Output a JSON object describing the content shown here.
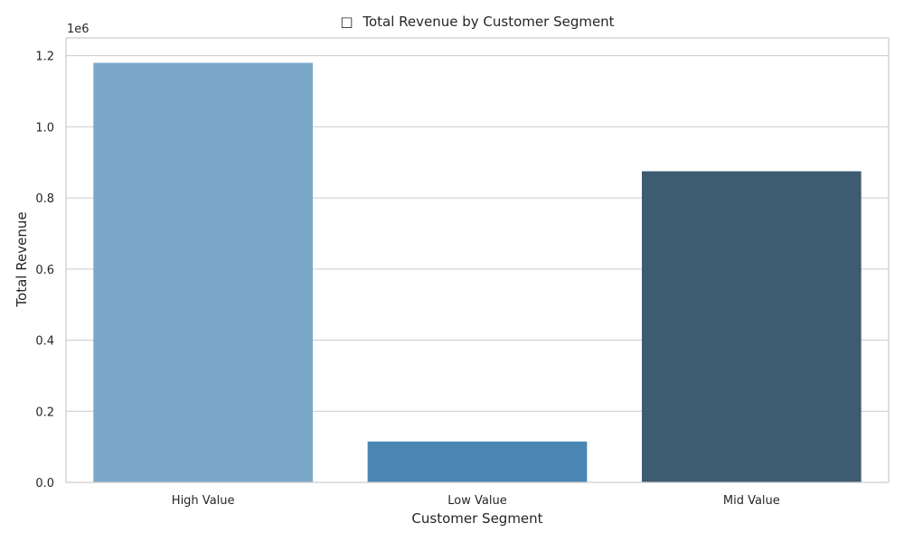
{
  "chart_data": {
    "type": "bar",
    "title": "Total Revenue by Customer Segment",
    "title_icon": "□",
    "xlabel": "Customer Segment",
    "ylabel": "Total Revenue",
    "y_offset_text": "1e6",
    "categories": [
      "High Value",
      "Low Value",
      "Mid Value"
    ],
    "values": [
      1180000,
      115000,
      875000
    ],
    "colors": [
      "#7ba8c9",
      "#4a86b4",
      "#3d5c72"
    ],
    "ylim": [
      0,
      1250000
    ],
    "yticks": [
      0,
      200000,
      400000,
      600000,
      800000,
      1000000,
      1200000
    ],
    "ytick_labels": [
      "0.0",
      "0.2",
      "0.4",
      "0.6",
      "0.8",
      "1.0",
      "1.2"
    ],
    "grid": true,
    "grid_axis": "y"
  }
}
